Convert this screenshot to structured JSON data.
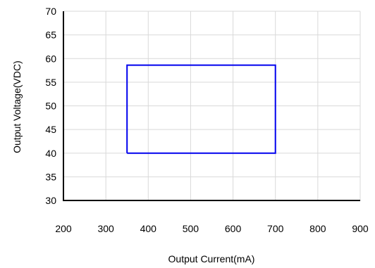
{
  "chart_data": {
    "type": "line",
    "title": "",
    "xlabel": "Output Current(mA)",
    "ylabel": "Output Voltage(VDC)",
    "xlim": [
      200,
      900
    ],
    "ylim": [
      30,
      70
    ],
    "x_ticks": [
      200,
      300,
      400,
      500,
      600,
      700,
      800,
      900
    ],
    "y_ticks": [
      30,
      35,
      40,
      45,
      50,
      55,
      60,
      65,
      70
    ],
    "grid": true,
    "legend": "none",
    "series": [
      {
        "color": "#0000ee",
        "points": [
          {
            "x": 350,
            "y": 40
          },
          {
            "x": 700,
            "y": 40
          },
          {
            "x": 700,
            "y": 58.6
          },
          {
            "x": 350,
            "y": 58.6
          },
          {
            "x": 350,
            "y": 40
          }
        ]
      }
    ]
  },
  "colors": {
    "grid": "#d9d9d9",
    "axis": "#000000",
    "series": "#0000ee"
  }
}
